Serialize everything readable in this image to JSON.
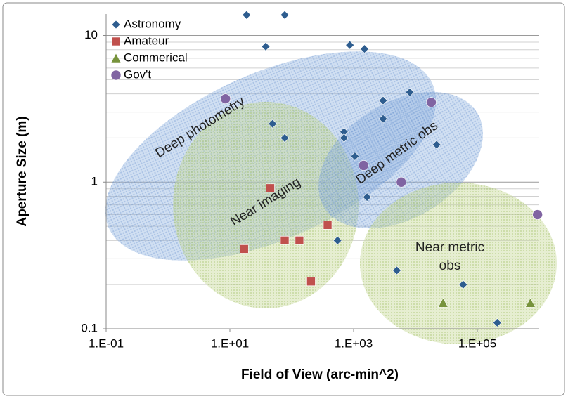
{
  "chart_data": {
    "type": "scatter",
    "xlabel": "Field of View (arc-min^2)",
    "ylabel": "Aperture Size (m)",
    "xlog": true,
    "ylog": true,
    "grid": true,
    "legend": "upper left",
    "xlim": [
      0.1,
      1000000
    ],
    "ylim": [
      0.1,
      14
    ],
    "xticks": [
      {
        "value": 0.1,
        "label": "1.E-01"
      },
      {
        "value": 10,
        "label": "1.E+01"
      },
      {
        "value": 1000,
        "label": "1.E+03"
      },
      {
        "value": 100000,
        "label": "1.E+05"
      }
    ],
    "yticks": [
      0.1,
      1,
      10
    ],
    "series": [
      {
        "name": "Astronomy",
        "color": "#2e5d8f",
        "marker": "diamond",
        "x": [
          18.6,
          77,
          38,
          870,
          1500,
          8100,
          3000,
          3000,
          22000,
          49,
          77,
          700,
          700,
          1050,
          1650,
          550,
          5000,
          59000,
          210000
        ],
        "values": [
          13.8,
          13.8,
          8.4,
          8.6,
          8.1,
          4.1,
          3.6,
          2.7,
          1.8,
          2.5,
          2.0,
          2.2,
          2.0,
          1.5,
          0.79,
          0.4,
          0.25,
          0.2,
          0.11
        ]
      },
      {
        "name": "Amateur",
        "color": "#c0504d",
        "marker": "square",
        "x": [
          45,
          17,
          77,
          133,
          380,
          205
        ],
        "values": [
          0.91,
          0.35,
          0.4,
          0.4,
          0.51,
          0.21
        ]
      },
      {
        "name": "Commerical",
        "color": "#77933c",
        "marker": "triangle",
        "x": [
          28000,
          720000
        ],
        "values": [
          0.15,
          0.15
        ]
      },
      {
        "name": "Gov't",
        "color": "#8064a2",
        "marker": "circle",
        "x": [
          8.5,
          18000,
          1450,
          5900,
          940000
        ],
        "values": [
          3.7,
          3.5,
          1.3,
          1.0,
          0.6
        ]
      }
    ],
    "annotations": [
      "Deep photometry",
      "Near imaging",
      "Deep metric obs",
      "Near metric obs"
    ]
  }
}
